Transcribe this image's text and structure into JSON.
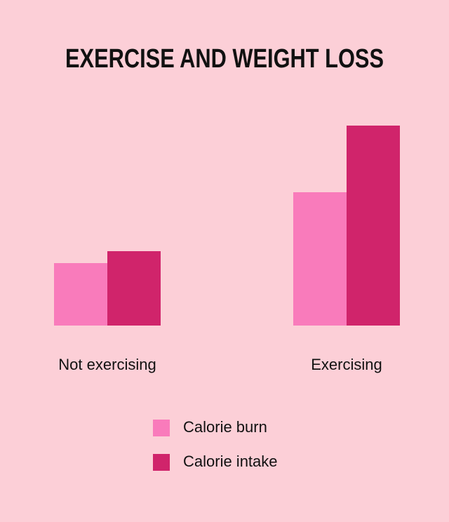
{
  "chart_data": {
    "type": "bar",
    "title": "EXERCISE AND WEIGHT LOSS",
    "categories": [
      "Not exercising",
      "Exercising"
    ],
    "series": [
      {
        "name": "Calorie burn",
        "color": "#f97bbb",
        "values": [
          89,
          190
        ]
      },
      {
        "name": "Calorie intake",
        "color": "#d0246b",
        "values": [
          106,
          285
        ]
      }
    ]
  }
}
